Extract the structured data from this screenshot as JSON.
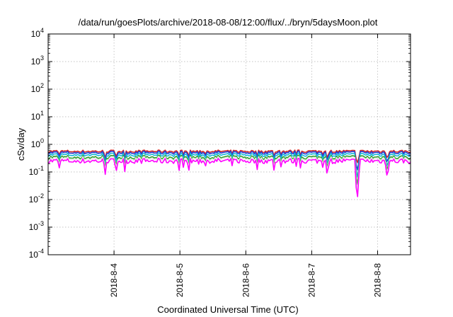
{
  "chart_data": {
    "type": "line",
    "title": "/data/run/goesPlots/archive/2018-08-08/12:00/flux/../bryn/5daysMoon.plot",
    "xlabel": "Coordinated Universal Time (UTC)",
    "ylabel": "cSv/day",
    "y_scale": "log",
    "ylim": [
      0.0001,
      10000
    ],
    "y_ticks": [
      {
        "value": 0.0001,
        "base": "10",
        "exp": "-4"
      },
      {
        "value": 0.001,
        "base": "10",
        "exp": "-3"
      },
      {
        "value": 0.01,
        "base": "10",
        "exp": "-2"
      },
      {
        "value": 0.1,
        "base": "10",
        "exp": "-1"
      },
      {
        "value": 1,
        "base": "10",
        "exp": "0"
      },
      {
        "value": 10,
        "base": "10",
        "exp": "1"
      },
      {
        "value": 100,
        "base": "10",
        "exp": "2"
      },
      {
        "value": 1000,
        "base": "10",
        "exp": "3"
      },
      {
        "value": 10000,
        "base": "10",
        "exp": "4"
      }
    ],
    "xlim": [
      "2018-08-03 00:00",
      "2018-08-08 12:00"
    ],
    "x_ticks": [
      "2018-8-4",
      "2018-8-5",
      "2018-8-6",
      "2018-8-7",
      "2018-8-8"
    ],
    "grid": true,
    "legend": "none",
    "series": [
      {
        "color": "#d62728",
        "level": 0.56
      },
      {
        "color": "#1f3fd6",
        "level": 0.5
      },
      {
        "color": "#17b8d8",
        "level": 0.42
      },
      {
        "color": "#2ca02c",
        "level": 0.34
      },
      {
        "color": "#e8e8e8",
        "level": 0.3
      },
      {
        "color": "#ff00ff",
        "level": 0.25
      }
    ],
    "dips": [
      {
        "x": "2018-08-07 16:30",
        "min": 0.006
      },
      {
        "x": "2018-08-08 03:30",
        "min": 0.075
      }
    ]
  }
}
